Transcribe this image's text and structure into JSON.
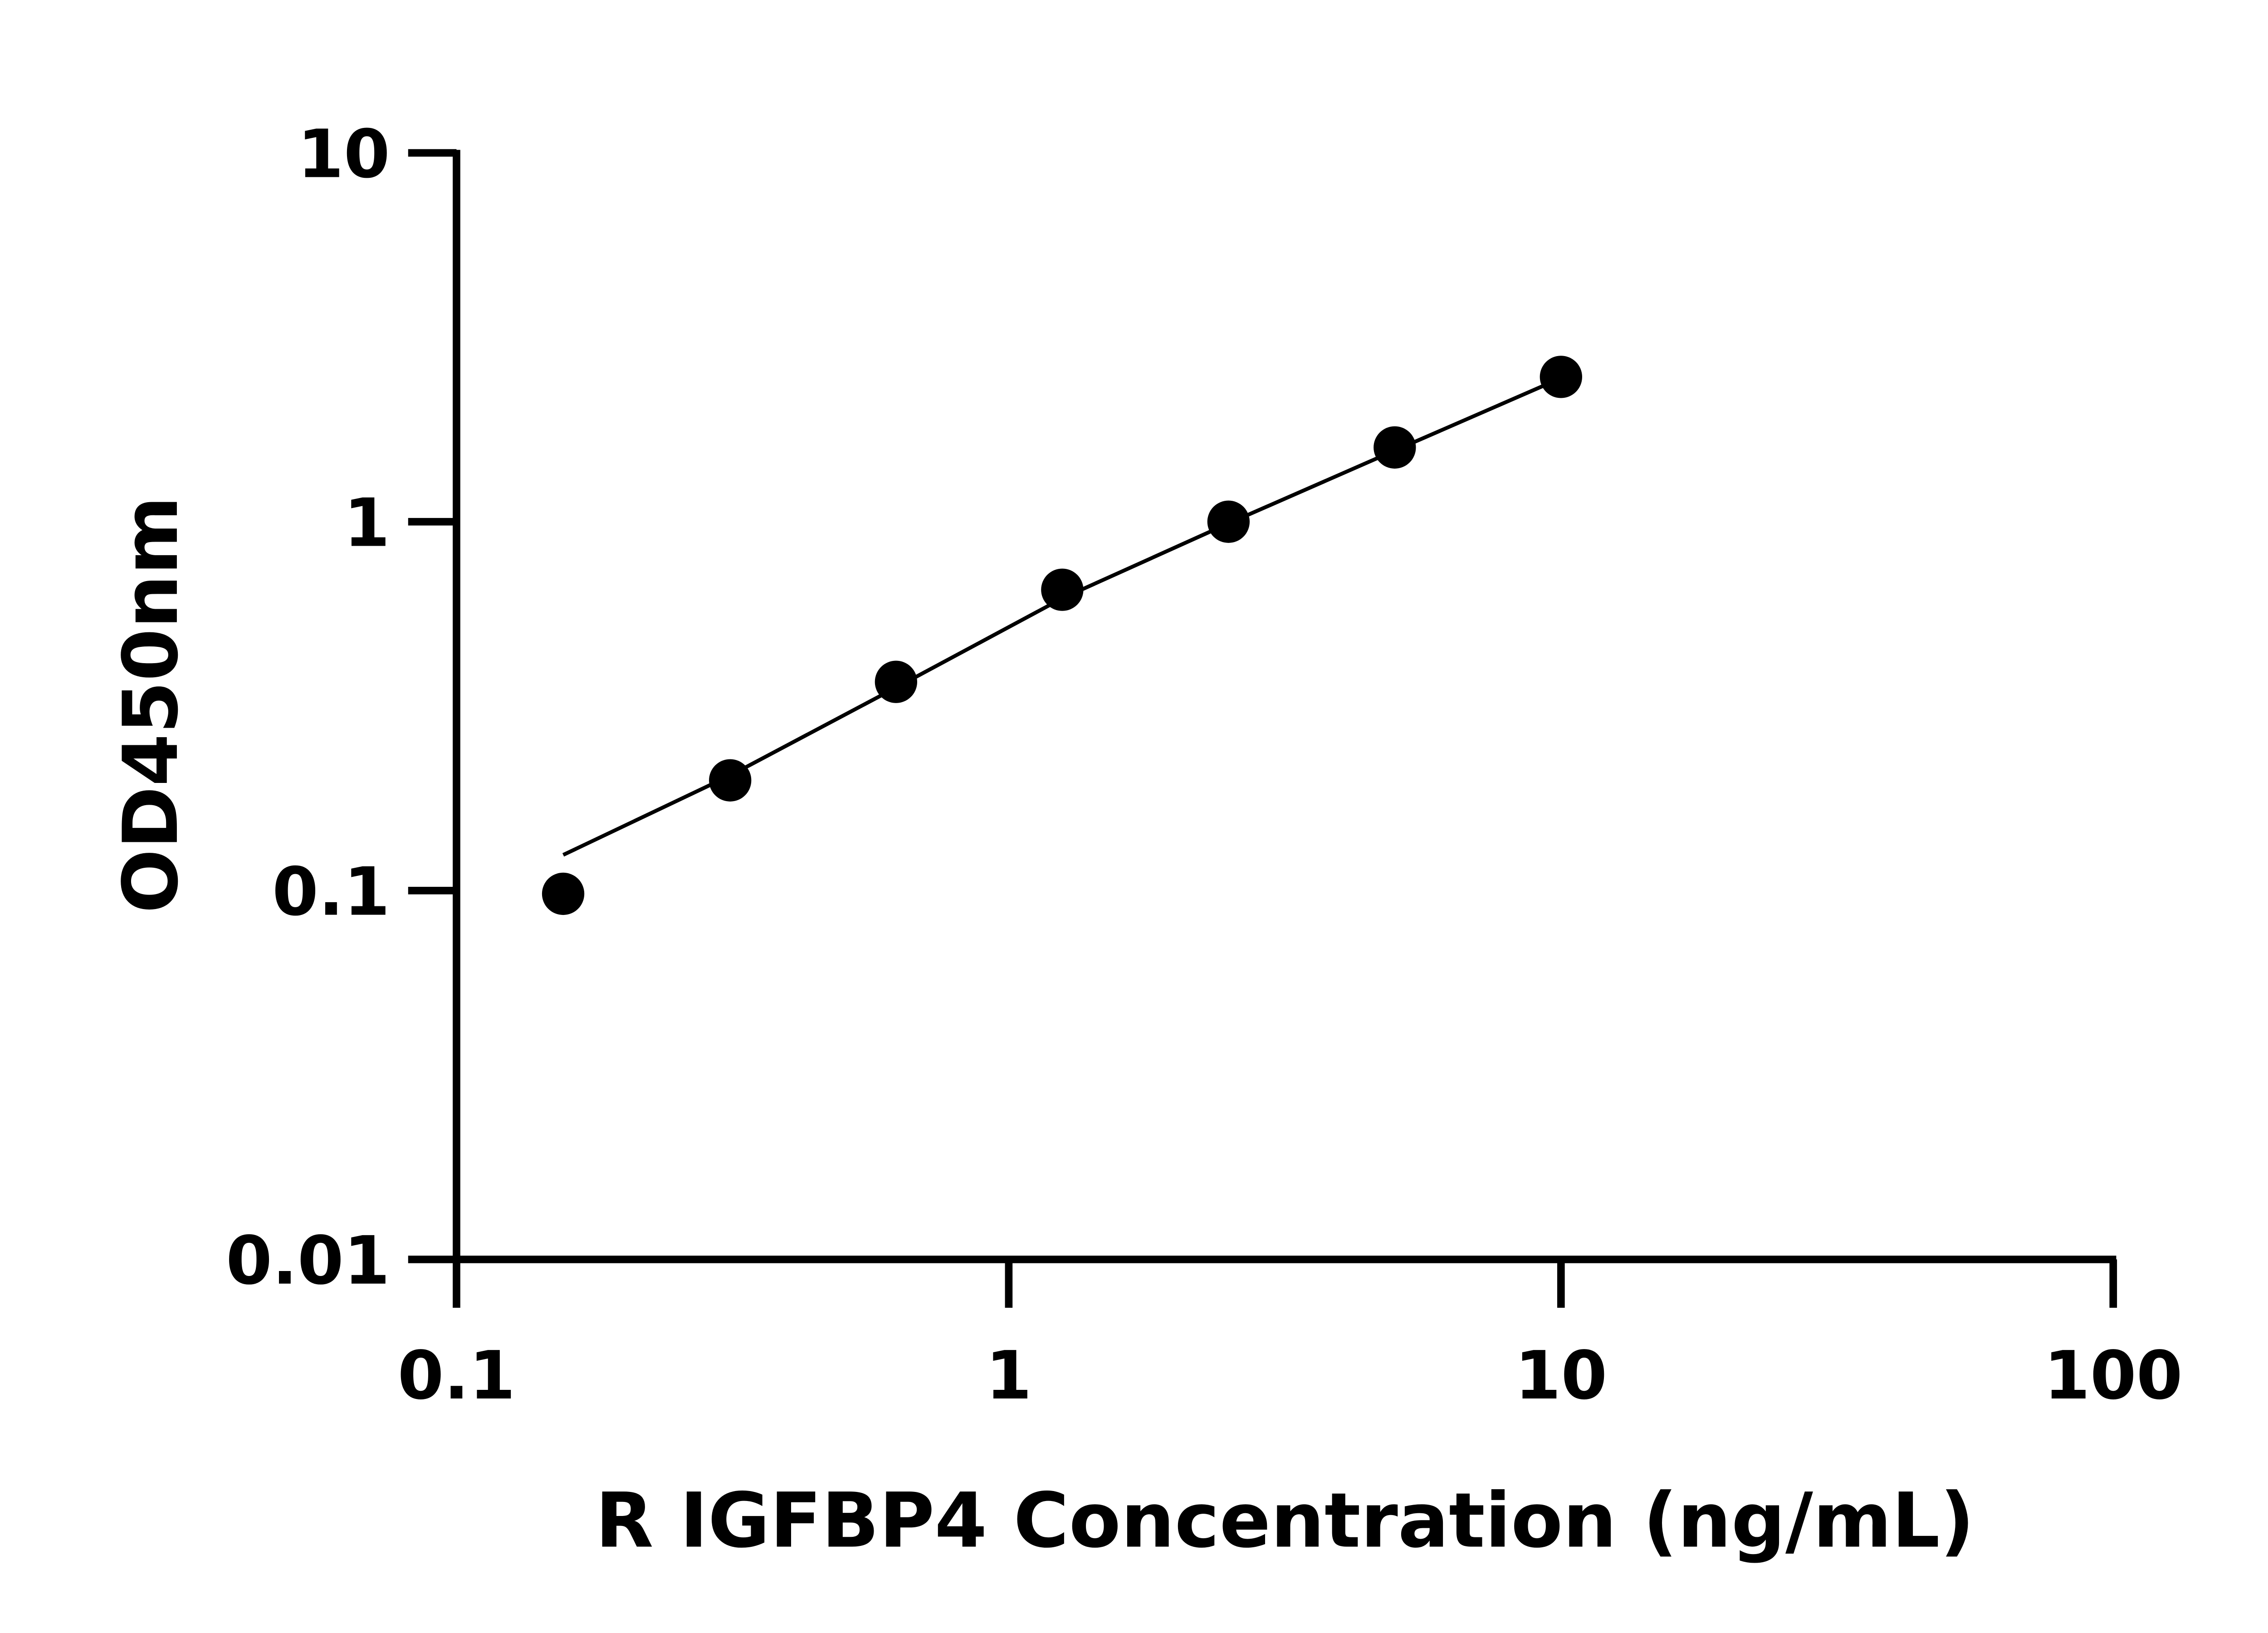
{
  "chart_data": {
    "type": "scatter",
    "xlabel": "R IGFBP4 Concentration (ng/mL)",
    "ylabel": "OD450nm",
    "xscale": "log",
    "yscale": "log",
    "xlim": [
      0.1,
      100
    ],
    "ylim": [
      0.01,
      10
    ],
    "xticks": [
      "0.1",
      "1",
      "10",
      "100"
    ],
    "yticks": [
      "0.01",
      "0.1",
      "1",
      "10"
    ],
    "grid": false,
    "points": [
      {
        "x": 0.156,
        "y": 0.098
      },
      {
        "x": 0.313,
        "y": 0.199
      },
      {
        "x": 0.625,
        "y": 0.368
      },
      {
        "x": 1.25,
        "y": 0.654
      },
      {
        "x": 2.5,
        "y": 1.0
      },
      {
        "x": 5,
        "y": 1.59
      },
      {
        "x": 10,
        "y": 2.47
      }
    ],
    "fit_line": [
      {
        "x": 0.156,
        "y": 0.125
      },
      {
        "x": 0.313,
        "y": 0.205
      },
      {
        "x": 0.625,
        "y": 0.355
      },
      {
        "x": 1.25,
        "y": 0.62
      },
      {
        "x": 2.5,
        "y": 0.99
      },
      {
        "x": 5,
        "y": 1.56
      },
      {
        "x": 10,
        "y": 2.45
      }
    ],
    "colors": {
      "marker": "#000000",
      "line": "#000000"
    }
  }
}
